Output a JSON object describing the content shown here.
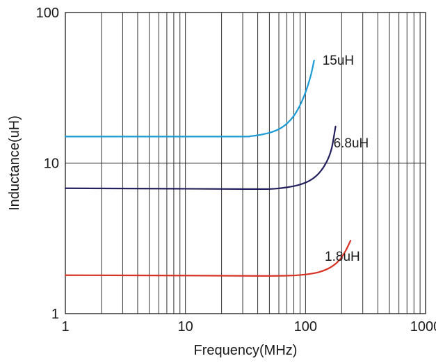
{
  "chart_data": {
    "type": "line",
    "title": "",
    "xlabel": "Frequency(MHz)",
    "ylabel": "Inductance(uH)",
    "xscale": "log",
    "yscale": "log",
    "xlim": [
      1,
      1000
    ],
    "ylim": [
      1,
      100
    ],
    "grid": "vertical at x minors and decades; horizontal at y decades only",
    "x_ticks": [
      "1",
      "10",
      "100",
      "1000"
    ],
    "y_ticks": [
      "1",
      "10",
      "100"
    ],
    "legend": "none (series labeled inline at curve ends)",
    "series": [
      {
        "name": "15uH",
        "color": "#1b9ad6",
        "points": [
          [
            1,
            15.0
          ],
          [
            10,
            15.0
          ],
          [
            30,
            15.0
          ],
          [
            35,
            15.1
          ],
          [
            40,
            15.3
          ],
          [
            50,
            15.9
          ],
          [
            60,
            16.8
          ],
          [
            70,
            18.3
          ],
          [
            80,
            20.6
          ],
          [
            90,
            24.2
          ],
          [
            100,
            29.5
          ],
          [
            110,
            37.5
          ],
          [
            118,
            48.0
          ]
        ]
      },
      {
        "name": "6.8uH",
        "color": "#23205e",
        "points": [
          [
            1,
            6.8
          ],
          [
            10,
            6.75
          ],
          [
            30,
            6.72
          ],
          [
            47,
            6.72
          ],
          [
            55,
            6.75
          ],
          [
            70,
            6.9
          ],
          [
            90,
            7.2
          ],
          [
            110,
            7.7
          ],
          [
            130,
            8.6
          ],
          [
            150,
            10.2
          ],
          [
            165,
            12.5
          ],
          [
            178,
            17.5
          ]
        ]
      },
      {
        "name": "1.8uH",
        "color": "#d63325",
        "points": [
          [
            1,
            1.8
          ],
          [
            10,
            1.79
          ],
          [
            40,
            1.78
          ],
          [
            75,
            1.79
          ],
          [
            100,
            1.82
          ],
          [
            130,
            1.89
          ],
          [
            160,
            2.02
          ],
          [
            190,
            2.25
          ],
          [
            215,
            2.6
          ],
          [
            237,
            3.05
          ]
        ]
      }
    ]
  }
}
